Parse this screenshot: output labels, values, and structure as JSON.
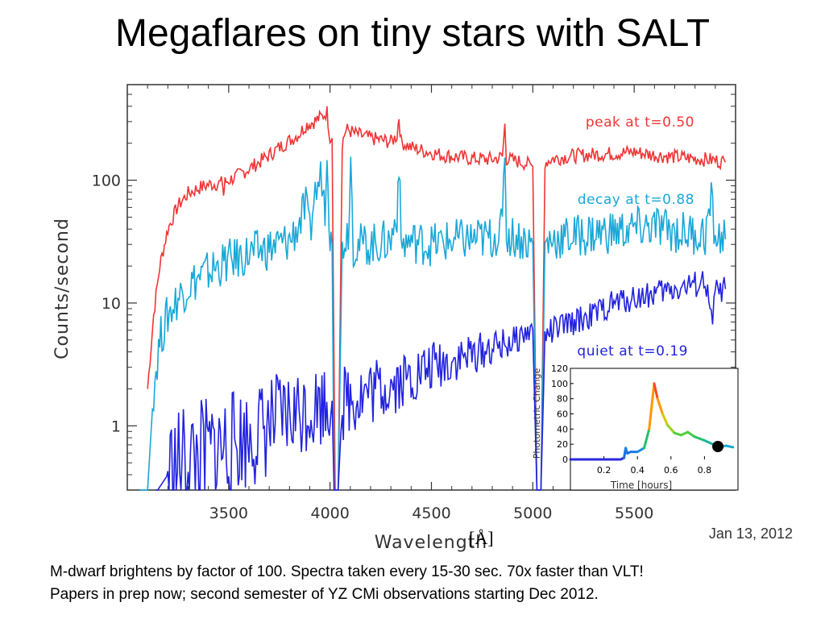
{
  "slide": {
    "title": "Megaflares on tiny stars with SALT",
    "date": "Jan 13, 2012",
    "caption_lines": [
      "M-dwarf brightens by factor of 100.  Spectra taken every 15-30 sec.  70x faster than VLT!",
      "Papers in prep now; second semester of YZ CMi observations starting Dec 2012."
    ],
    "xunit": "[Å]"
  },
  "colors": {
    "peak": "#f03535",
    "decay": "#1aa8d8",
    "quiet": "#2222e0",
    "axis": "#333333"
  },
  "chart_data": [
    {
      "type": "line",
      "title": "",
      "xlabel": "Wavelength",
      "ylabel": "Counts/second",
      "xlim": [
        3000,
        6000
      ],
      "ylim": [
        0.3,
        600
      ],
      "yscale": "log",
      "xticks": [
        3500,
        4000,
        4500,
        5000,
        5500
      ],
      "yticks": [
        1,
        10,
        100
      ],
      "xtick_labels": [
        "3500",
        "4000",
        "4500",
        "5000",
        "5500"
      ],
      "ytick_labels": [
        "1",
        "10",
        "100"
      ],
      "grid": false,
      "series": [
        {
          "name": "peak at t=0.50",
          "color": "#f03535",
          "x": [
            3100,
            3130,
            3160,
            3200,
            3250,
            3300,
            3350,
            3400,
            3470,
            3475,
            3482,
            3550,
            3650,
            3700,
            3740,
            3800,
            3850,
            3880,
            3920,
            3960,
            3985,
            4000,
            4010,
            4025,
            4040,
            4060,
            4075,
            4090,
            4102,
            4120,
            4200,
            4300,
            4330,
            4340,
            4350,
            4400,
            4450,
            4500,
            4550,
            4620,
            4700,
            4800,
            4850,
            4862,
            4870,
            4900,
            4950,
            5000,
            5020,
            5040,
            5060,
            5100,
            5200,
            5300,
            5400,
            5500,
            5600,
            5700,
            5800,
            5850,
            5900,
            5950
          ],
          "y": [
            2,
            8,
            20,
            40,
            62,
            78,
            86,
            92,
            95,
            75,
            96,
            110,
            140,
            160,
            180,
            210,
            240,
            280,
            300,
            330,
            360,
            220,
            220,
            0.3,
            0.3,
            200,
            250,
            260,
            250,
            240,
            220,
            205,
            230,
            330,
            205,
            185,
            175,
            168,
            160,
            155,
            150,
            148,
            155,
            280,
            150,
            145,
            140,
            130,
            0.3,
            0.3,
            140,
            150,
            158,
            162,
            165,
            170,
            160,
            155,
            150,
            148,
            145,
            140
          ]
        },
        {
          "name": "decay at t=0.88",
          "color": "#1aa8d8",
          "x": [
            3060,
            3080,
            3100,
            3130,
            3160,
            3200,
            3250,
            3300,
            3400,
            3500,
            3600,
            3700,
            3800,
            3850,
            3880,
            3900,
            3920,
            3940,
            3960,
            3975,
            3985,
            4000,
            4010,
            4020,
            4040,
            4060,
            4090,
            4102,
            4115,
            4200,
            4300,
            4330,
            4340,
            4350,
            4400,
            4500,
            4600,
            4700,
            4800,
            4850,
            4862,
            4870,
            4900,
            4950,
            5000,
            5020,
            5040,
            5060,
            5100,
            5200,
            5300,
            5400,
            5500,
            5600,
            5700,
            5800,
            5850,
            5880,
            5900,
            5950
          ],
          "y": [
            0.3,
            0.3,
            0.3,
            2,
            5,
            8,
            11,
            14,
            18,
            22,
            25,
            28,
            32,
            45,
            60,
            35,
            70,
            90,
            110,
            60,
            220,
            30,
            30,
            0.3,
            0.3,
            30,
            40,
            150,
            30,
            30,
            32,
            55,
            150,
            30,
            32,
            30,
            32,
            33,
            34,
            40,
            200,
            35,
            35,
            33,
            30,
            0.3,
            0.3,
            30,
            33,
            35,
            37,
            38,
            40,
            42,
            38,
            37,
            36,
            65,
            34,
            33
          ]
        },
        {
          "name": "quiet at t=0.19",
          "color": "#2222e0",
          "x": [
            3140,
            3150,
            3200,
            3300,
            3400,
            3500,
            3600,
            3700,
            3800,
            3900,
            3990,
            4010,
            4020,
            4040,
            4060,
            4100,
            4200,
            4300,
            4400,
            4500,
            4600,
            4700,
            4800,
            4900,
            4950,
            5000,
            5020,
            5040,
            5060,
            5100,
            5200,
            5300,
            5400,
            5500,
            5600,
            5700,
            5800,
            5850,
            5880,
            5900,
            5950
          ],
          "y": [
            0.3,
            0.3,
            0.4,
            0.5,
            0.6,
            0.7,
            0.8,
            1.0,
            1.2,
            1.4,
            1.6,
            1.6,
            0.3,
            0.3,
            1.5,
            1.7,
            1.9,
            2.2,
            2.5,
            3.0,
            3.4,
            3.8,
            4.3,
            4.8,
            5.5,
            6.0,
            0.3,
            0.3,
            5.5,
            6.0,
            7.0,
            8.0,
            10,
            11,
            12,
            13,
            14,
            15,
            7,
            12,
            13
          ]
        }
      ],
      "annotations": [
        "peak at t=0.50",
        "decay at t=0.88",
        "quiet at t=0.19"
      ]
    },
    {
      "type": "line",
      "title": "",
      "xlabel": "Time [hours]",
      "ylabel": "Photometric Change",
      "xlim": [
        0,
        1
      ],
      "ylim": [
        0,
        120
      ],
      "xticks": [
        0.2,
        0.4,
        0.6,
        0.8
      ],
      "yticks": [
        0,
        20,
        40,
        60,
        80,
        100,
        120
      ],
      "xtick_labels": [
        "0.2",
        "0.4",
        "0.6",
        "0.8"
      ],
      "ytick_labels": [
        "0",
        "20",
        "40",
        "60",
        "80",
        "100",
        "120"
      ],
      "grid": false,
      "series": [
        {
          "x": [
            0.0,
            0.1,
            0.2,
            0.3,
            0.32,
            0.33,
            0.34,
            0.36,
            0.4,
            0.44,
            0.47,
            0.5,
            0.52,
            0.55,
            0.58,
            0.62,
            0.66,
            0.7,
            0.74,
            0.8,
            0.85,
            0.9,
            0.93,
            0.97
          ],
          "y": [
            0,
            0,
            0,
            0,
            2,
            15,
            8,
            10,
            10,
            15,
            40,
            100,
            80,
            60,
            45,
            35,
            32,
            36,
            30,
            25,
            20,
            17,
            18,
            16
          ]
        }
      ],
      "marker": {
        "x": 0.88,
        "y": 17
      }
    }
  ]
}
